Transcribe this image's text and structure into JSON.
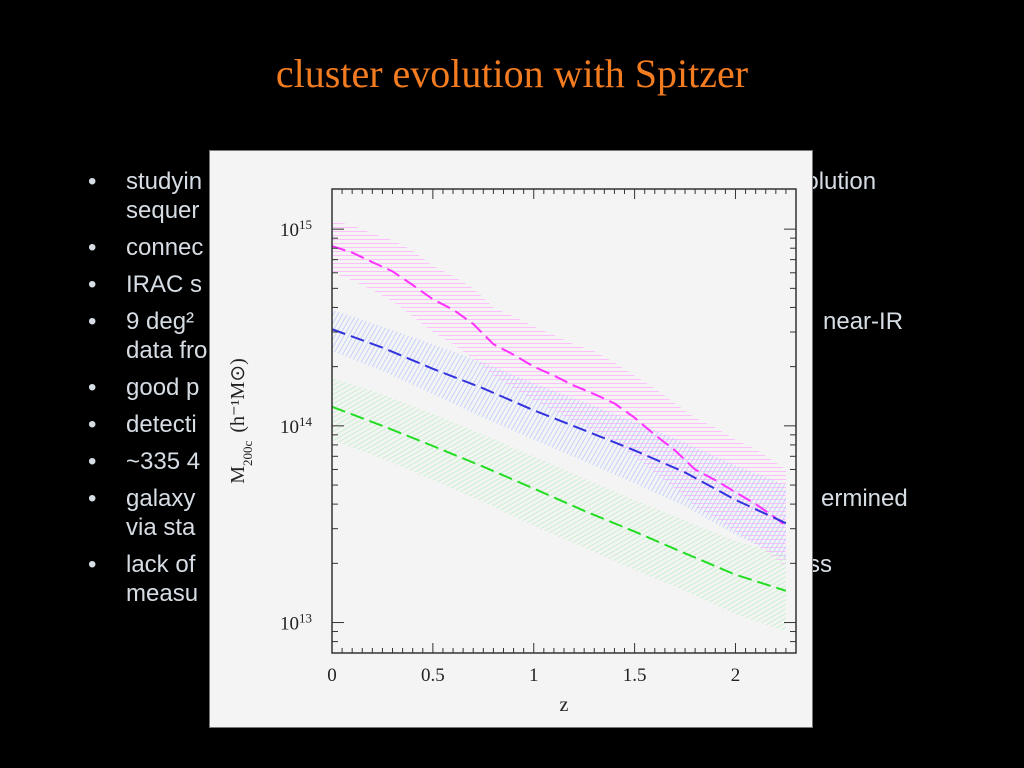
{
  "slide": {
    "title": "cluster evolution with Spitzer",
    "bullets": [
      {
        "text": "studyin",
        "right": "evolution"
      },
      {
        "text": "sequer",
        "right": ""
      },
      {
        "text": "connec",
        "right": ""
      },
      {
        "text": "IRAC s",
        "right": ""
      },
      {
        "text": "9 deg²",
        "right": "near-IR"
      },
      {
        "text": "data fro",
        "right": ""
      },
      {
        "text": "good p",
        "right": ""
      },
      {
        "text": "detecti",
        "right": ""
      },
      {
        "text": "~335 4",
        "right": ""
      },
      {
        "text": "galaxy",
        "right": "ermined"
      },
      {
        "text": "via sta",
        "right": ""
      },
      {
        "text": "lack of",
        "right": "ss"
      },
      {
        "text": "measu",
        "right": ""
      }
    ]
  },
  "chart_data": {
    "type": "line",
    "xlabel": "z",
    "ylabel": "M200c (h⁻¹M⊙)",
    "ylabel_main": "M",
    "ylabel_sub": "200c",
    "ylabel_unit": "(h⁻¹M⊙)",
    "x_ticks": [
      "0",
      "0.5",
      "1",
      "1.5",
      "2"
    ],
    "y_ticks": [
      {
        "value": 10000000000000.0,
        "base": "10",
        "exp": "13"
      },
      {
        "value": 100000000000000.0,
        "base": "10",
        "exp": "14"
      },
      {
        "value": 1000000000000000.0,
        "base": "10",
        "exp": "15"
      }
    ],
    "xlim": [
      0,
      2.3
    ],
    "ylim": [
      7000000000000.0,
      1600000000000000.0
    ],
    "yscale": "log",
    "series": [
      {
        "color": "#ff33ff",
        "band_color": "#ffb2ff",
        "x": [
          0,
          0.1,
          0.2,
          0.3,
          0.4,
          0.5,
          0.6,
          0.7,
          0.8,
          0.9,
          1.0,
          1.1,
          1.2,
          1.3,
          1.4,
          1.5,
          1.6,
          1.7,
          1.8,
          1.9,
          2.0,
          2.1,
          2.2,
          2.25
        ],
        "y": [
          820000000000000.0,
          760000000000000.0,
          680000000000000.0,
          610000000000000.0,
          520000000000000.0,
          440000000000000.0,
          390000000000000.0,
          330000000000000.0,
          260000000000000.0,
          230000000000000.0,
          200000000000000.0,
          180000000000000.0,
          160000000000000.0,
          145000000000000.0,
          130000000000000.0,
          110000000000000.0,
          90000000000000.0,
          75000000000000.0,
          60000000000000.0,
          53000000000000.0,
          46000000000000.0,
          40000000000000.0,
          34000000000000.0,
          31000000000000.0
        ],
        "upper": [
          1100000000000000.0,
          1050000000000000.0,
          950000000000000.0,
          880000000000000.0,
          780000000000000.0,
          650000000000000.0,
          580000000000000.0,
          500000000000000.0,
          400000000000000.0,
          360000000000000.0,
          320000000000000.0,
          290000000000000.0,
          260000000000000.0,
          240000000000000.0,
          210000000000000.0,
          180000000000000.0,
          155000000000000.0,
          130000000000000.0,
          110000000000000.0,
          98000000000000.0,
          85000000000000.0,
          76000000000000.0,
          65000000000000.0,
          60000000000000.0
        ],
        "lower": [
          600000000000000.0,
          550000000000000.0,
          490000000000000.0,
          430000000000000.0,
          360000000000000.0,
          300000000000000.0,
          260000000000000.0,
          220000000000000.0,
          180000000000000.0,
          155000000000000.0,
          135000000000000.0,
          120000000000000.0,
          105000000000000.0,
          94000000000000.0,
          83000000000000.0,
          70000000000000.0,
          58000000000000.0,
          48000000000000.0,
          39000000000000.0,
          34000000000000.0,
          29000000000000.0,
          25000000000000.0,
          21000000000000.0,
          19000000000000.0
        ]
      },
      {
        "color": "#3333dd",
        "band_color": "#b8c8ff",
        "x": [
          0,
          0.25,
          0.5,
          0.75,
          1.0,
          1.25,
          1.5,
          1.75,
          2.0,
          2.25
        ],
        "y": [
          310000000000000.0,
          250000000000000.0,
          195000000000000.0,
          155000000000000.0,
          120000000000000.0,
          95000000000000.0,
          75000000000000.0,
          58000000000000.0,
          42000000000000.0,
          32000000000000.0
        ],
        "upper": [
          390000000000000.0,
          320000000000000.0,
          260000000000000.0,
          210000000000000.0,
          165000000000000.0,
          132000000000000.0,
          105000000000000.0,
          82000000000000.0,
          63000000000000.0,
          50000000000000.0
        ],
        "lower": [
          240000000000000.0,
          190000000000000.0,
          145000000000000.0,
          110000000000000.0,
          85000000000000.0,
          66000000000000.0,
          51000000000000.0,
          39000000000000.0,
          28000000000000.0,
          21000000000000.0
        ]
      },
      {
        "color": "#22dd22",
        "band_color": "#bfefc4",
        "x": [
          0,
          0.25,
          0.5,
          0.75,
          1.0,
          1.25,
          1.5,
          1.75,
          2.0,
          2.25
        ],
        "y": [
          125000000000000.0,
          100000000000000.0,
          79000000000000.0,
          62000000000000.0,
          48000000000000.0,
          37000000000000.0,
          29000000000000.0,
          22500000000000.0,
          17500000000000.0,
          14500000000000.0
        ],
        "upper": [
          175000000000000.0,
          145000000000000.0,
          115000000000000.0,
          90000000000000.0,
          70000000000000.0,
          54000000000000.0,
          42000000000000.0,
          33000000000000.0,
          26000000000000.0,
          22000000000000.0
        ],
        "lower": [
          85000000000000.0,
          68000000000000.0,
          53000000000000.0,
          41000000000000.0,
          31000000000000.0,
          24000000000000.0,
          18500000000000.0,
          14500000000000.0,
          11000000000000.0,
          9000000000000.0
        ]
      }
    ]
  }
}
